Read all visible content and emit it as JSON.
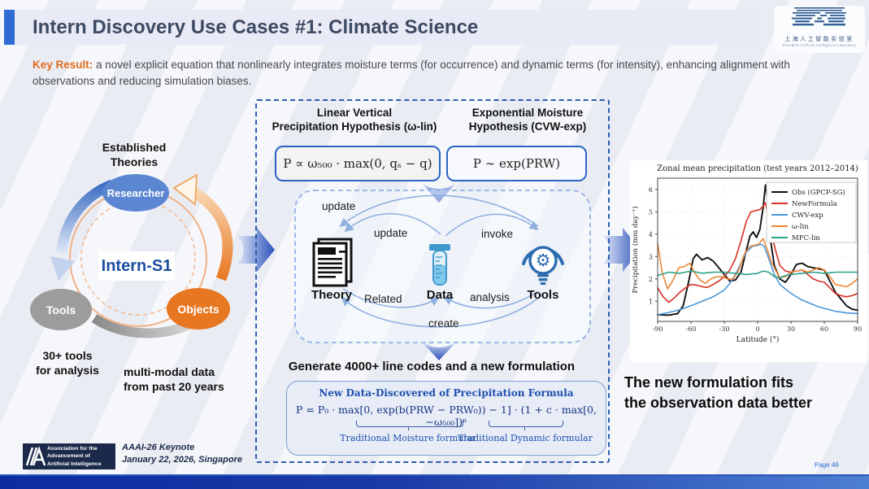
{
  "slide": {
    "title": "Intern Discovery Use Cases #1: Climate Science",
    "page_label": "Page 46"
  },
  "header_logo": {
    "cn": "上海人工智能实验室",
    "en": "Shanghai Artificial Intelligence Laboratory"
  },
  "key_result": {
    "label": "Key Result:",
    "text": " a novel explicit equation that nonlinearly integrates moisture terms (for occurrence) and dynamic terms (for intensity), enhancing alignment with observations and reducing simulation biases."
  },
  "left_diagram": {
    "heading": "Established\nTheories",
    "center_label": "Intern-S1",
    "node_researcher": "Researcher",
    "node_tools": "Tools",
    "node_objects": "Objects",
    "caption_tools": "30+ tools\nfor analysis",
    "caption_data": "multi-modal data\nfrom past 20 years"
  },
  "middle_panel": {
    "hypothesis1_title": "Linear Vertical\nPrecipitation Hypothesis (ω-lin)",
    "hypothesis2_title": "Exponential Moisture\nHypothesis (CVW-exp)",
    "equation1": "P ∝ ω₅₀₀ · max(0, qₛ − q)",
    "equation2": "P ∼ exp(PRW)",
    "loop": {
      "update_top": "update",
      "update_mid": "update",
      "invoke": "invoke",
      "related": "Related",
      "analysis": "analysis",
      "create": "create",
      "theory": "Theory",
      "data": "Data",
      "tools": "Tools"
    },
    "generate_text": "Generate 4000+ line codes and a new formulation",
    "formula_box": {
      "title": "New Data-Discovered of Precipitation Formula",
      "formula": "P = P₀ · max[0, exp(b(PRW − PRW₀)) − 1] · (1 + c · max[0, −ω₅₀₀])ⁿ",
      "brace1_label": "Traditional Moisture formular",
      "brace2_label": "Traditional Dynamic formular"
    }
  },
  "conclusion": "The new formulation fits\nthe observation data better",
  "footer": {
    "aaai_logo_text": "Association for the\nAdvancement of\nArtificial Intelligence",
    "keynote_line1": "AAAI-26 Keynote",
    "keynote_line2": "January 22, 2026, Singapore"
  },
  "chart_data": {
    "type": "line",
    "title": "Zonal mean precipitation (test years 2012–2014)",
    "xlabel": "Latitude (°)",
    "ylabel": "Precipitation (mm day⁻¹)",
    "xlim": [
      -90,
      90
    ],
    "ylim": [
      0.1,
      6.5
    ],
    "xticks": [
      -90,
      -60,
      -30,
      0,
      30,
      60,
      90
    ],
    "yticks": [
      1,
      2,
      3,
      4,
      5,
      6
    ],
    "grid": true,
    "legend_position": "upper right",
    "series": [
      {
        "name": "Obs (GPCP-SG)",
        "color": "#111111",
        "x": [
          -90,
          -80,
          -72,
          -67,
          -62,
          -58,
          -55,
          -50,
          -45,
          -40,
          -35,
          -30,
          -25,
          -20,
          -15,
          -10,
          -7,
          -4,
          -1,
          2,
          5,
          7,
          9,
          12,
          15,
          20,
          25,
          30,
          35,
          40,
          45,
          50,
          55,
          60,
          65,
          70,
          75,
          80,
          85,
          90
        ],
        "y": [
          0.4,
          0.38,
          0.45,
          0.8,
          1.9,
          2.9,
          3.1,
          2.85,
          2.95,
          2.8,
          2.5,
          2.2,
          1.9,
          1.95,
          2.3,
          3.3,
          3.9,
          4.1,
          3.85,
          4.2,
          5.2,
          6.2,
          5.5,
          3.6,
          2.6,
          2.0,
          1.85,
          2.2,
          2.65,
          2.7,
          2.55,
          2.5,
          2.45,
          2.4,
          1.9,
          1.4,
          1.1,
          0.8,
          0.65,
          0.6
        ]
      },
      {
        "name": "NewFormula",
        "color": "#d93025",
        "x": [
          -90,
          -85,
          -80,
          -75,
          -70,
          -65,
          -60,
          -55,
          -50,
          -45,
          -40,
          -35,
          -30,
          -25,
          -20,
          -15,
          -10,
          -6,
          -2,
          2,
          5,
          7,
          10,
          13,
          16,
          20,
          25,
          30,
          35,
          40,
          45,
          50,
          55,
          60,
          65,
          70,
          75,
          80,
          85,
          90
        ],
        "y": [
          1.6,
          1.2,
          0.95,
          1.15,
          1.4,
          1.6,
          1.75,
          1.72,
          1.65,
          1.62,
          1.75,
          1.9,
          2.1,
          2.4,
          2.9,
          3.7,
          4.6,
          5.0,
          5.05,
          5.1,
          5.25,
          5.4,
          4.6,
          3.9,
          3.3,
          2.6,
          2.35,
          2.3,
          2.35,
          2.4,
          2.2,
          2.0,
          1.9,
          1.85,
          1.6,
          1.35,
          1.25,
          1.2,
          1.25,
          1.35
        ]
      },
      {
        "name": "CWV-exp",
        "color": "#4a98d9",
        "x": [
          -90,
          -80,
          -70,
          -60,
          -50,
          -40,
          -30,
          -25,
          -20,
          -15,
          -10,
          -5,
          0,
          3,
          6,
          10,
          15,
          20,
          25,
          30,
          35,
          40,
          45,
          50,
          55,
          60,
          70,
          80,
          90
        ],
        "y": [
          0.4,
          0.5,
          0.62,
          0.8,
          1.0,
          1.2,
          1.5,
          1.8,
          2.2,
          2.7,
          3.2,
          3.45,
          3.5,
          3.55,
          3.45,
          2.9,
          2.2,
          1.75,
          1.55,
          1.35,
          1.2,
          1.05,
          0.95,
          0.85,
          0.75,
          0.68,
          0.55,
          0.48,
          0.45
        ]
      },
      {
        "name": "ω-lin",
        "color": "#ef8636",
        "x": [
          -90,
          -86,
          -81,
          -76,
          -71,
          -66,
          -61,
          -57,
          -52,
          -47,
          -42,
          -37,
          -32,
          -27,
          -22,
          -17,
          -12,
          -7,
          -3,
          1,
          5,
          8,
          12,
          16,
          20,
          25,
          30,
          35,
          40,
          45,
          50,
          55,
          60,
          65,
          70,
          75,
          80,
          85,
          90
        ],
        "y": [
          3.6,
          2.3,
          1.55,
          1.95,
          2.5,
          2.55,
          2.7,
          2.3,
          1.95,
          1.8,
          2.0,
          2.1,
          2.1,
          2.0,
          2.0,
          2.4,
          3.1,
          3.45,
          3.5,
          3.55,
          3.8,
          3.4,
          2.8,
          2.4,
          2.05,
          2.1,
          2.3,
          2.35,
          2.4,
          2.3,
          2.4,
          2.5,
          2.4,
          2.1,
          1.75,
          1.7,
          1.65,
          1.8,
          2.0
        ]
      },
      {
        "name": "MFC-lin",
        "color": "#2ca089",
        "x": [
          -90,
          -80,
          -70,
          -60,
          -50,
          -40,
          -30,
          -20,
          -10,
          0,
          5,
          10,
          15,
          20,
          25,
          30,
          40,
          50,
          60,
          70,
          80,
          90
        ],
        "y": [
          2.15,
          2.3,
          2.25,
          2.35,
          2.25,
          2.3,
          2.3,
          2.25,
          2.2,
          2.25,
          2.35,
          2.3,
          2.1,
          2.05,
          2.15,
          2.2,
          2.25,
          2.3,
          2.25,
          2.3,
          2.3,
          2.3
        ]
      }
    ]
  }
}
